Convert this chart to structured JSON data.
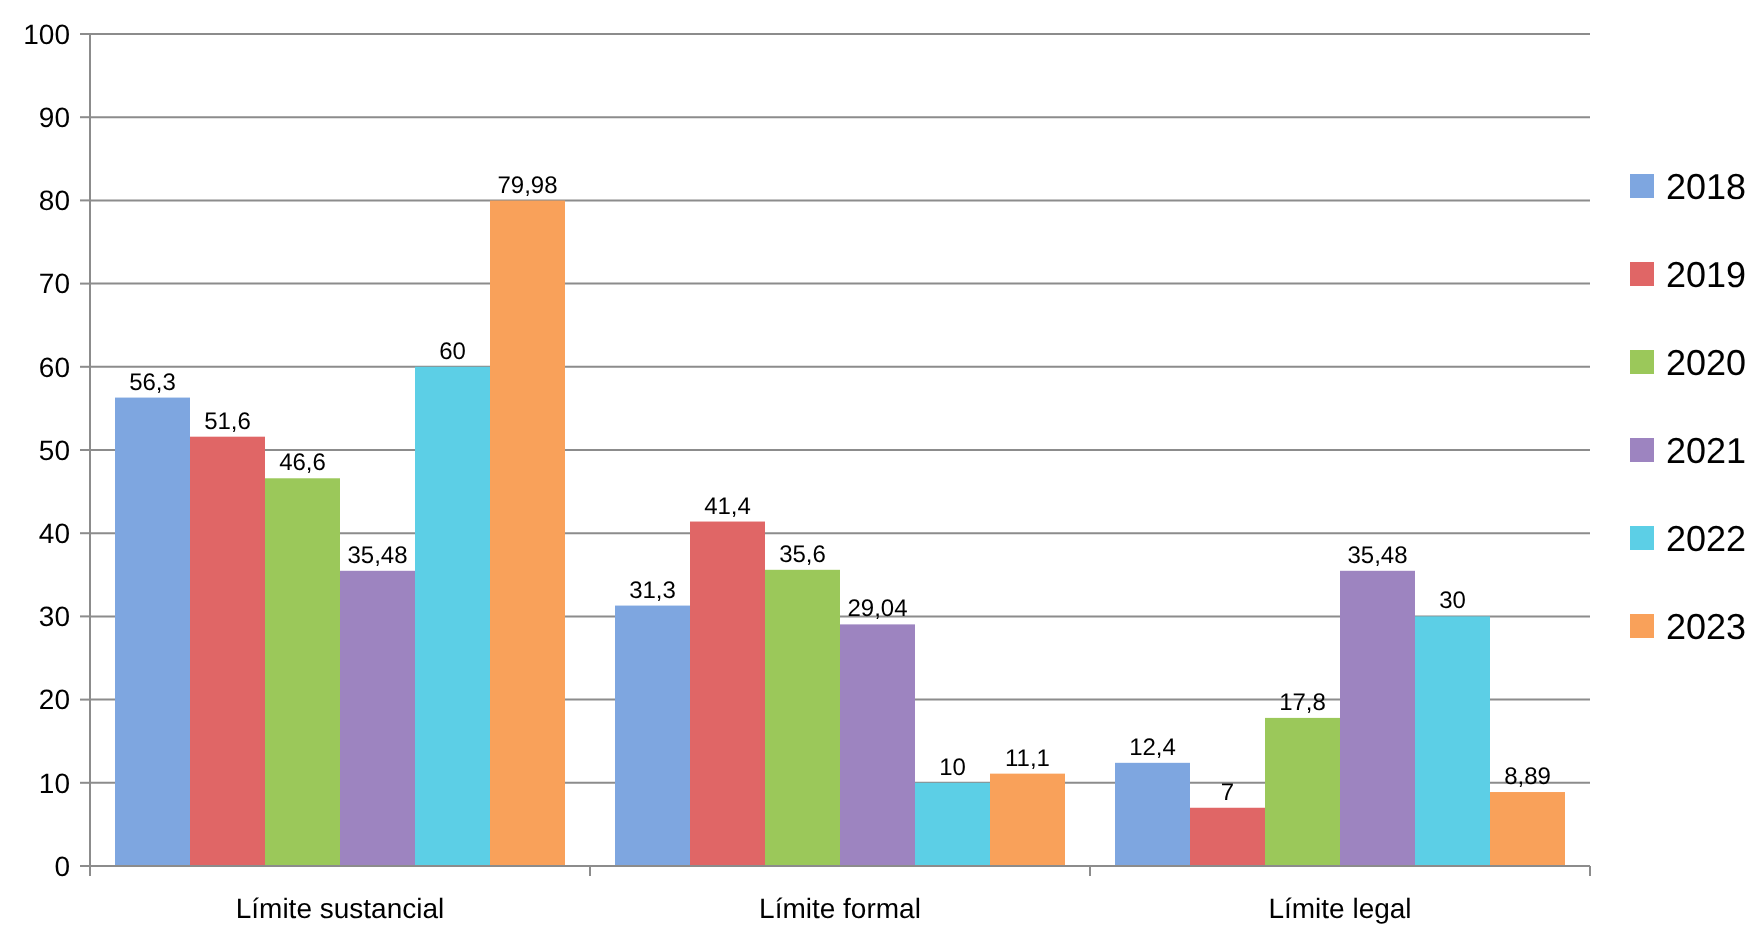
{
  "chart_data": {
    "type": "bar",
    "categories": [
      "Límite sustancial",
      "Límite formal",
      "Límite legal"
    ],
    "ylim": [
      0,
      100
    ],
    "yticks": [
      0,
      10,
      20,
      30,
      40,
      50,
      60,
      70,
      80,
      90,
      100
    ],
    "grid": "y",
    "legend": "right",
    "series": [
      {
        "name": "2018",
        "color": "#7ea6e0",
        "values": [
          56.3,
          31.3,
          12.4
        ],
        "value_labels": [
          "56,3",
          "31,3",
          "12,4"
        ]
      },
      {
        "name": "2019",
        "color": "#e06666",
        "values": [
          51.6,
          41.4,
          7
        ],
        "value_labels": [
          "51,6",
          "41,4",
          "7"
        ]
      },
      {
        "name": "2020",
        "color": "#9bc85a",
        "values": [
          46.6,
          35.6,
          17.8
        ],
        "value_labels": [
          "46,6",
          "35,6",
          "17,8"
        ]
      },
      {
        "name": "2021",
        "color": "#9d84c0",
        "values": [
          35.48,
          29.04,
          35.48
        ],
        "value_labels": [
          "35,48",
          "29,04",
          "35,48"
        ]
      },
      {
        "name": "2022",
        "color": "#5ccfe6",
        "values": [
          60,
          10,
          30
        ],
        "value_labels": [
          "60",
          "10",
          "30"
        ]
      },
      {
        "name": "2023",
        "color": "#f9a15a",
        "values": [
          79.98,
          11.1,
          8.89
        ],
        "value_labels": [
          "79,98",
          "11,1",
          "8,89"
        ]
      }
    ]
  }
}
